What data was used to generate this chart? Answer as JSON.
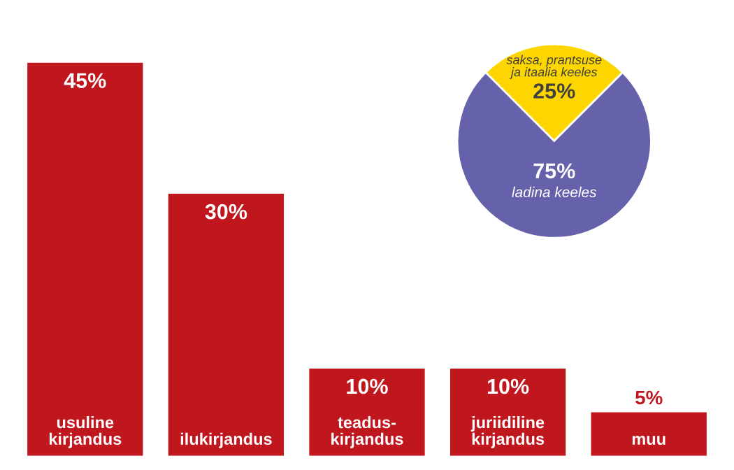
{
  "chart_data": [
    {
      "type": "bar",
      "categories": [
        "usuline\nkirjandus",
        "ilukirjandus",
        "teadus-\nkirjandus",
        "juriidiline\nkirjandus",
        "muu"
      ],
      "values": [
        45,
        30,
        10,
        10,
        5
      ],
      "value_labels": [
        "45%",
        "30%",
        "10%",
        "10%",
        "5%"
      ],
      "color": "#c0161e"
    },
    {
      "type": "pie",
      "categories": [
        "saksa, prantsuse\nja itaalia keeles",
        "ladina keeles"
      ],
      "values": [
        25,
        75
      ],
      "value_labels": [
        "25%",
        "75%"
      ],
      "colors": [
        "#fdd600",
        "#6561ab"
      ]
    }
  ]
}
